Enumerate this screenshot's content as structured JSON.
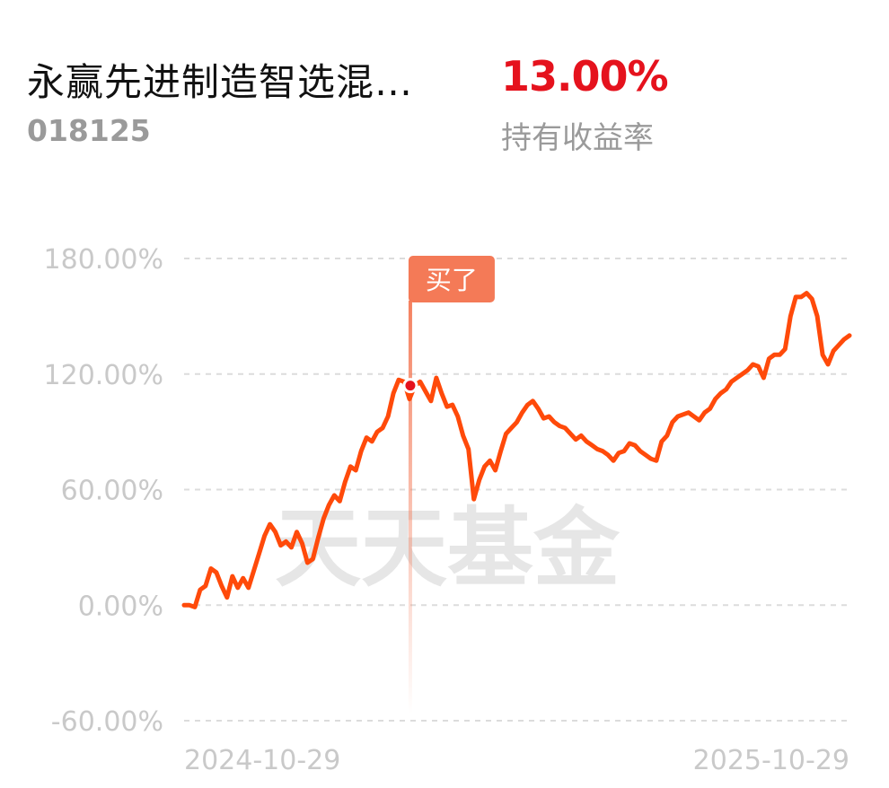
{
  "header": {
    "fund_name": "永赢先进制造智选混…",
    "fund_code": "018125",
    "return_value": "13.00%",
    "return_label": "持有收益率"
  },
  "watermark": "天天基金",
  "colors": {
    "line": "#ff4a0a",
    "accent_red": "#e5121d",
    "buy_marker": "#f47a57"
  },
  "chart_data": {
    "type": "line",
    "yticks": [
      "180.00%",
      "120.00%",
      "60.00%",
      "0.00%",
      "-60.00%"
    ],
    "ytick_values": [
      180,
      120,
      60,
      0,
      -60
    ],
    "ylim": [
      -60,
      180
    ],
    "x_start_label": "2024-10-29",
    "x_end_label": "2025-10-29",
    "grid": true,
    "buy_marker": {
      "label": "买了",
      "x": 0.34,
      "y": 114
    },
    "series": [
      {
        "values": [
          0,
          0,
          -1,
          8,
          10,
          19,
          17,
          10,
          4,
          15,
          9,
          14,
          9,
          18,
          27,
          36,
          42,
          38,
          31,
          33,
          30,
          38,
          32,
          22,
          24,
          35,
          45,
          52,
          57,
          54,
          64,
          72,
          70,
          80,
          87,
          85,
          90,
          92,
          98,
          110,
          117,
          116,
          107,
          114,
          116,
          111,
          106,
          118,
          110,
          103,
          104,
          98,
          88,
          81,
          55,
          65,
          72,
          75,
          70,
          80,
          89,
          92,
          95,
          100,
          104,
          106,
          102,
          97,
          98,
          95,
          93,
          92,
          89,
          86,
          88,
          85,
          83,
          81,
          80,
          78,
          75,
          79,
          80,
          84,
          83,
          80,
          78,
          76,
          75,
          85,
          88,
          95,
          98,
          99,
          100,
          98,
          96,
          100,
          102,
          107,
          110,
          112,
          116,
          118,
          120,
          122,
          125,
          124,
          118,
          128,
          130,
          130,
          133,
          150,
          160,
          160,
          162,
          159,
          150,
          130,
          125,
          132,
          135,
          138,
          140
        ]
      }
    ]
  }
}
